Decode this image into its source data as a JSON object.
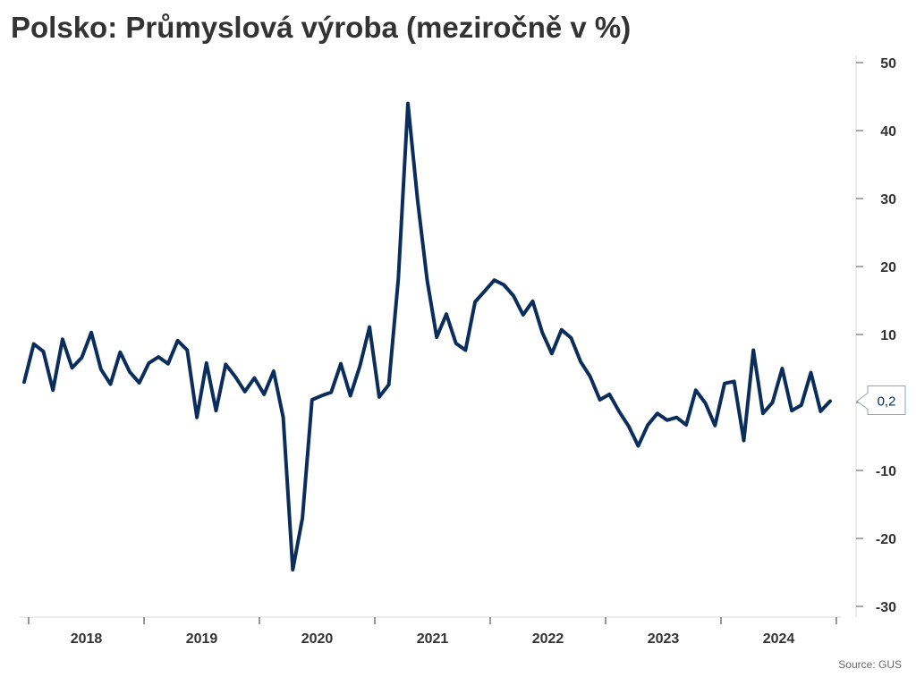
{
  "chart_data": {
    "type": "line",
    "title": "Polsko: Průmyslová výroba (meziročně v %)",
    "source": "Source: GUS",
    "ylim": [
      -30,
      50
    ],
    "y_ticks": [
      "50",
      "40",
      "30",
      "20",
      "10",
      "",
      "-10",
      "-20",
      "-30"
    ],
    "y_tick_values": [
      50,
      40,
      30,
      20,
      10,
      0,
      -10,
      -20,
      -30
    ],
    "x_tick_labels": [
      "2018",
      "2019",
      "2020",
      "2021",
      "2022",
      "2023",
      "2024"
    ],
    "grid": false,
    "last_value_label": "0,2",
    "line_color": "#0b2d5b",
    "series": [
      {
        "values": [
          3.0,
          8.6,
          7.5,
          1.8,
          9.3,
          5.1,
          6.6,
          10.3,
          4.9,
          2.7,
          7.4,
          4.5,
          2.9,
          5.8,
          6.7,
          5.7,
          9.1,
          7.7,
          -2.2,
          5.8,
          -1.2,
          5.6,
          3.8,
          1.6,
          3.6,
          1.2,
          4.6,
          -2.2,
          -24.6,
          -17.0,
          0.4,
          1.0,
          1.5,
          5.7,
          1.0,
          5.4,
          11.1,
          0.8,
          2.6,
          18.2,
          44.0,
          29.8,
          18.0,
          9.6,
          13.0,
          8.7,
          7.7,
          14.8,
          16.4,
          18.0,
          17.3,
          15.7,
          12.9,
          14.9,
          10.3,
          7.2,
          10.7,
          9.5,
          6.0,
          3.8,
          0.4,
          1.2,
          -1.3,
          -3.5,
          -6.4,
          -3.3,
          -1.6,
          -2.6,
          -2.2,
          -3.3,
          1.8,
          -0.1,
          -3.4,
          2.8,
          3.1,
          -5.6,
          7.7,
          -1.6,
          0.0,
          5.0,
          -1.2,
          -0.4,
          4.4,
          -1.3,
          0.2
        ]
      }
    ]
  }
}
